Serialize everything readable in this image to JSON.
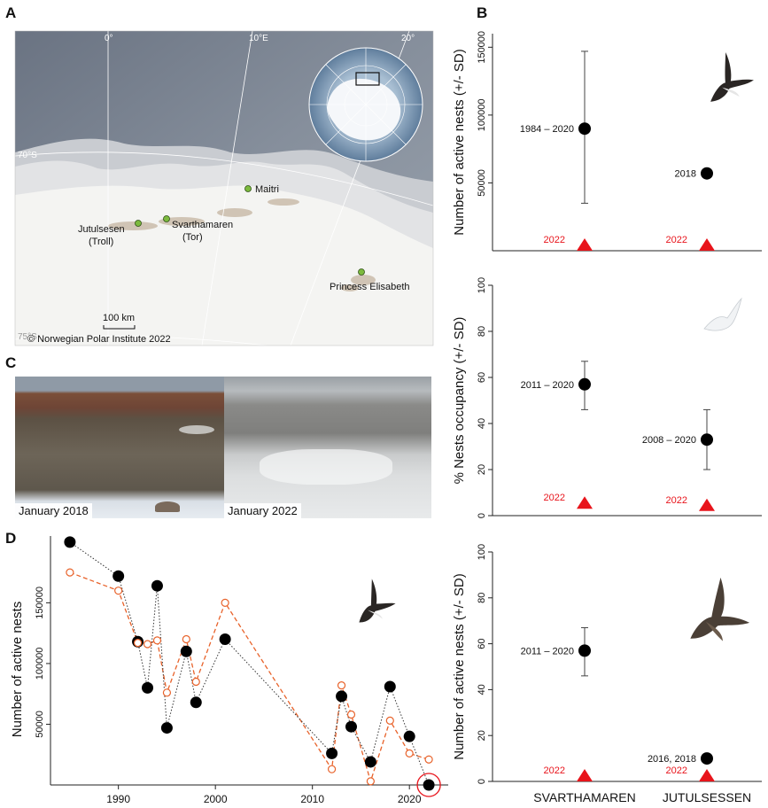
{
  "panels": {
    "a": "A",
    "b": "B",
    "c": "C",
    "d": "D"
  },
  "map": {
    "lon_labels": [
      "0°",
      "10°E",
      "20°"
    ],
    "lat_labels": [
      "70°S",
      "75°S"
    ],
    "sites": [
      {
        "name": "Maitri",
        "sub": ""
      },
      {
        "name": "Jutulsesen",
        "sub": "(Troll)"
      },
      {
        "name": "Svarthamaren",
        "sub": "(Tor)"
      },
      {
        "name": "Princess Elisabeth",
        "sub": ""
      }
    ],
    "scale_label": "100 km",
    "credit": "© Norwegian Polar Institute 2022"
  },
  "photos": {
    "left_caption": "January 2018",
    "right_caption": "January 2022"
  },
  "colors": {
    "black": "#000000",
    "red": "#e8141b",
    "orange": "#e8622a",
    "gray": "#888888",
    "ocean": "#707a89",
    "ice": "#f3f3f1"
  },
  "chart_data": [
    {
      "type": "scatter",
      "panel": "B-top",
      "ylabel": "Number of active nests (+/- SD)",
      "ylim": [
        0,
        160000
      ],
      "yticks": [
        50000,
        100000,
        150000
      ],
      "categories": [
        "SVARTHAMAREN",
        "JUTULSESSEN"
      ],
      "series": [
        {
          "points": [
            {
              "category": "SVARTHAMAREN",
              "y": 90000,
              "err_low": 35000,
              "err_high": 147000,
              "label": "1984 – 2020"
            },
            {
              "category": "JUTULSESSEN",
              "y": 57000,
              "label": "2018"
            }
          ]
        },
        {
          "points": [
            {
              "category": "SVARTHAMAREN",
              "y": 0,
              "label": "2022"
            },
            {
              "category": "JUTULSESSEN",
              "y": 0,
              "label": "2022"
            }
          ]
        }
      ]
    },
    {
      "type": "scatter",
      "panel": "B-middle",
      "ylabel": "% Nests occupancy (+/- SD)",
      "ylim": [
        0,
        100
      ],
      "yticks": [
        0,
        20,
        40,
        60,
        80,
        100
      ],
      "categories": [
        "SVARTHAMAREN",
        "JUTULSESSEN"
      ],
      "series": [
        {
          "points": [
            {
              "category": "SVARTHAMAREN",
              "y": 57,
              "err_low": 46,
              "err_high": 67,
              "label": "2011 – 2020"
            },
            {
              "category": "JUTULSESSEN",
              "y": 33,
              "err_low": 20,
              "err_high": 46,
              "label": "2008 – 2020"
            }
          ]
        },
        {
          "points": [
            {
              "category": "SVARTHAMAREN",
              "y": 3,
              "label": "2022"
            },
            {
              "category": "JUTULSESSEN",
              "y": 2,
              "label": "2022"
            }
          ]
        }
      ]
    },
    {
      "type": "scatter",
      "panel": "B-bottom",
      "ylabel": "Number of active nests (+/- SD)",
      "ylim": [
        0,
        100
      ],
      "yticks": [
        0,
        20,
        40,
        60,
        80,
        100
      ],
      "categories": [
        "SVARTHAMAREN",
        "JUTULSESSEN"
      ],
      "series": [
        {
          "points": [
            {
              "category": "SVARTHAMAREN",
              "y": 57,
              "err_low": 46,
              "err_high": 67,
              "label": "2011 – 2020"
            },
            {
              "category": "JUTULSESSEN",
              "y": 10,
              "label": "2016, 2018"
            }
          ]
        },
        {
          "points": [
            {
              "category": "SVARTHAMAREN",
              "y": 0,
              "label": "2022"
            },
            {
              "category": "JUTULSESSEN",
              "y": 0,
              "label": "2022"
            }
          ]
        }
      ]
    },
    {
      "type": "line",
      "panel": "D",
      "ylabel": "Number of active nests",
      "xlim": [
        1983,
        2024
      ],
      "ylim": [
        0,
        205000
      ],
      "xticks": [
        1990,
        2000,
        2010,
        2020
      ],
      "yticks": [
        50000,
        100000,
        150000
      ],
      "series": [
        {
          "style": "black-dotted-filled",
          "points": [
            [
              1985,
              200000
            ],
            [
              1990,
              172000
            ],
            [
              1992,
              118000
            ],
            [
              1993,
              80000
            ],
            [
              1994,
              164000
            ],
            [
              1995,
              47000
            ],
            [
              1997,
              110000
            ],
            [
              1998,
              68000
            ],
            [
              2001,
              120000
            ],
            [
              2012,
              26000
            ],
            [
              2013,
              73000
            ],
            [
              2014,
              48000
            ],
            [
              2016,
              19000
            ],
            [
              2018,
              81000
            ],
            [
              2020,
              40000
            ],
            [
              2022,
              0
            ]
          ]
        },
        {
          "style": "orange-dashed-open",
          "points": [
            [
              1985,
              175000
            ],
            [
              1990,
              160000
            ],
            [
              1992,
              117000
            ],
            [
              1993,
              116000
            ],
            [
              1994,
              119000
            ],
            [
              1995,
              76000
            ],
            [
              1997,
              120000
            ],
            [
              1998,
              85000
            ],
            [
              2001,
              150000
            ],
            [
              2012,
              13000
            ],
            [
              2013,
              82000
            ],
            [
              2014,
              58000
            ],
            [
              2016,
              3000
            ],
            [
              2018,
              53000
            ],
            [
              2020,
              26000
            ],
            [
              2022,
              21000
            ]
          ]
        }
      ]
    }
  ],
  "x_category_labels": [
    "SVARTHAMAREN",
    "JUTULSESSEN"
  ]
}
